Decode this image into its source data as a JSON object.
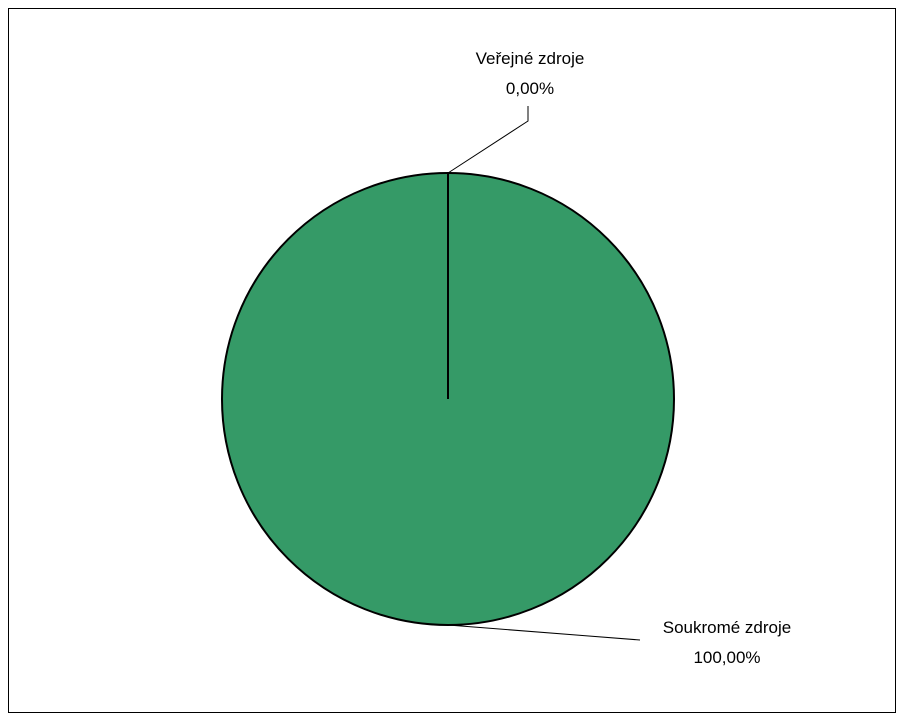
{
  "chart_data": {
    "type": "pie",
    "title": "",
    "slices": [
      {
        "label": "Veřejné zdroje",
        "value": 0.0,
        "value_label": "0,00%"
      },
      {
        "label": "Soukromé zdroje",
        "value": 100.0,
        "value_label": "100,00%"
      }
    ],
    "colors": {
      "slice_fill": "#359A67",
      "outline": "#000000",
      "background": "#FFFFFF"
    },
    "legend": "none",
    "grid": false
  }
}
